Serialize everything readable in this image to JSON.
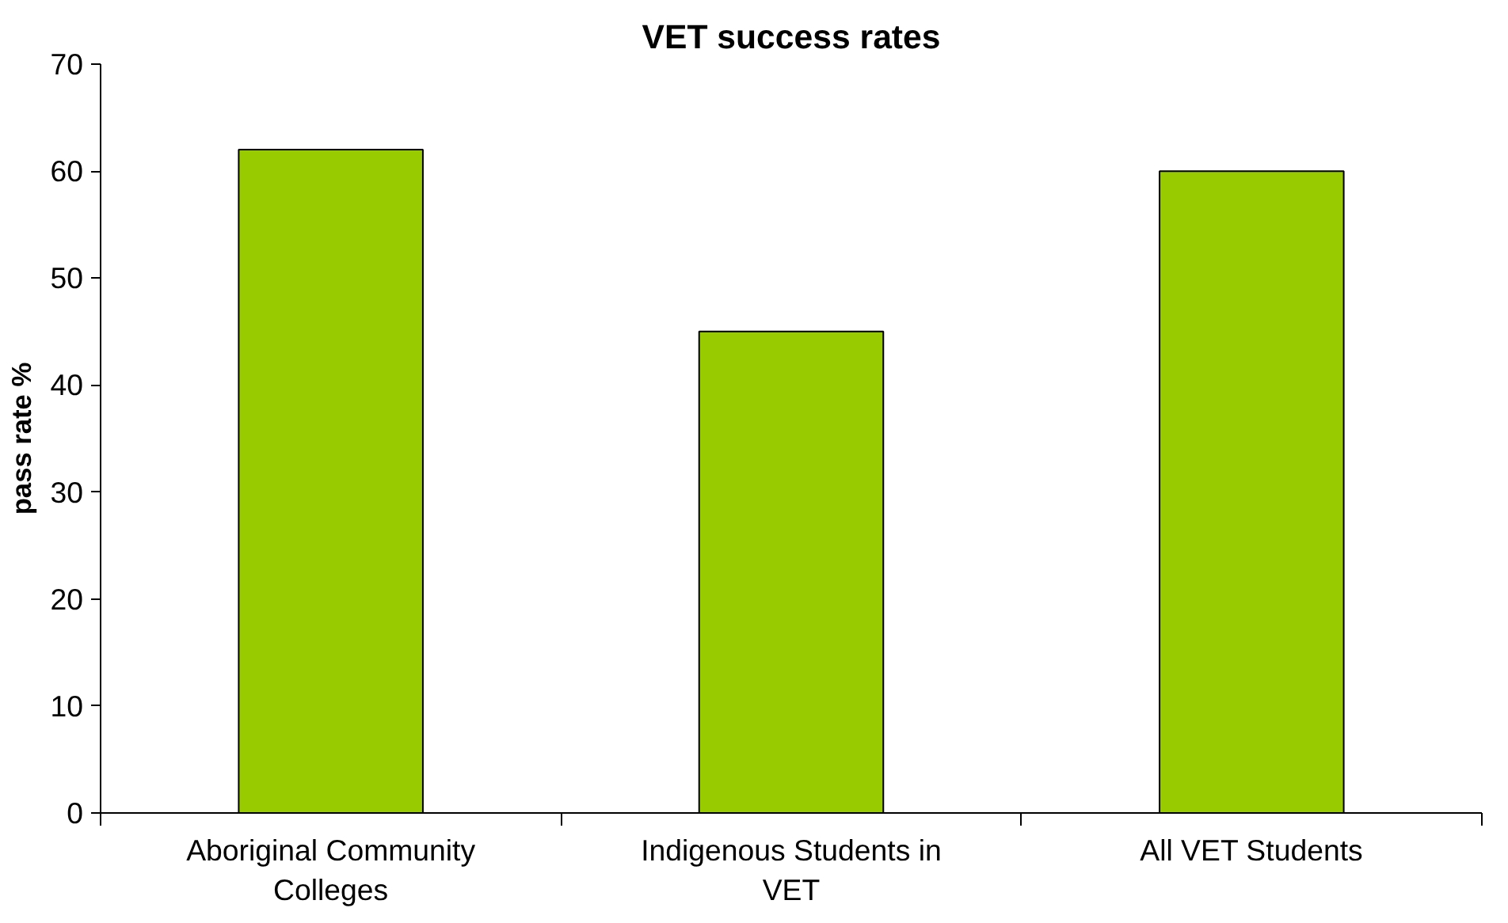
{
  "chart_data": {
    "type": "bar",
    "title": "VET success rates",
    "ylabel": "pass rate %",
    "categories": [
      "Aboriginal Community Colleges",
      "Indigenous Students in VET",
      "All VET Students"
    ],
    "values": [
      62,
      45,
      60
    ],
    "color": "#99cc00",
    "ylim": [
      0,
      70
    ],
    "yticks": [
      0,
      10,
      20,
      30,
      40,
      50,
      60,
      70
    ],
    "grid": false
  }
}
